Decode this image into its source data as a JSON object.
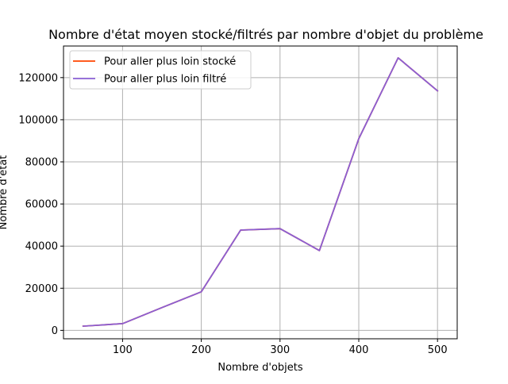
{
  "chart_data": {
    "type": "line",
    "title": "Nombre d'état moyen stocké/filtrés par nombre d'objet du problème",
    "xlabel": "Nombre d'objets",
    "ylabel": "Nombre d'état",
    "x": [
      50,
      100,
      150,
      200,
      250,
      300,
      350,
      400,
      450,
      500
    ],
    "xlim": [
      25,
      525
    ],
    "ylim": [
      -4000,
      135000
    ],
    "xticks": [
      100,
      200,
      300,
      400,
      500
    ],
    "xtick_labels": [
      "100",
      "200",
      "300",
      "400",
      "500"
    ],
    "yticks": [
      0,
      20000,
      40000,
      60000,
      80000,
      100000,
      120000
    ],
    "ytick_labels": [
      "0",
      "20000",
      "40000",
      "60000",
      "80000",
      "100000",
      "120000"
    ],
    "grid": true,
    "legend_position": "upper left",
    "series": [
      {
        "name": "Pour aller plus loin stocké",
        "color": "#ff4500",
        "values": [
          2000,
          3200,
          10800,
          18300,
          47600,
          48300,
          37900,
          91000,
          129400,
          113700
        ]
      },
      {
        "name": "Pour aller plus loin filtré",
        "color": "#8a5fd4",
        "values": [
          2000,
          3200,
          10800,
          18300,
          47600,
          48300,
          37900,
          91000,
          129400,
          113700
        ]
      }
    ]
  }
}
